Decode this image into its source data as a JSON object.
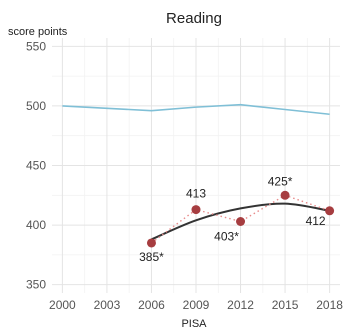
{
  "chart_data": {
    "type": "line",
    "title": "Reading",
    "ylabel": "score points",
    "xlabel": "PISA",
    "xlim": [
      1999.3,
      2018.7
    ],
    "ylim": [
      343,
      557
    ],
    "xticks": [
      "2000",
      "2003",
      "2006",
      "2009",
      "2012",
      "2015",
      "2018"
    ],
    "yticks": [
      "350",
      "400",
      "450",
      "500",
      "550"
    ],
    "grid": true,
    "colors": {
      "average": "#7fbfd6",
      "trend": "#333333",
      "dots": "#a63d40",
      "dotted": "#e88a8a",
      "grid": "#e4e4e4"
    },
    "series": [
      {
        "values": [
          {
            "x": 2000,
            "y": 500
          },
          {
            "x": 2003,
            "y": 498
          },
          {
            "x": 2006,
            "y": 496
          },
          {
            "x": 2009,
            "y": 499
          },
          {
            "x": 2012,
            "y": 501
          },
          {
            "x": 2015,
            "y": 497
          },
          {
            "x": 2018,
            "y": 493
          }
        ]
      },
      {
        "values": [
          {
            "x": 2006,
            "y": 385,
            "label": "385*"
          },
          {
            "x": 2009,
            "y": 413,
            "label": "413"
          },
          {
            "x": 2012,
            "y": 403,
            "label": "403*"
          },
          {
            "x": 2015,
            "y": 425,
            "label": "425*"
          },
          {
            "x": 2018,
            "y": 412,
            "label": "412"
          }
        ]
      },
      {
        "values": [
          {
            "x": 2006,
            "y": 388
          },
          {
            "x": 2009,
            "y": 404
          },
          {
            "x": 2012,
            "y": 414
          },
          {
            "x": 2015,
            "y": 418
          },
          {
            "x": 2018,
            "y": 412
          }
        ]
      }
    ]
  }
}
